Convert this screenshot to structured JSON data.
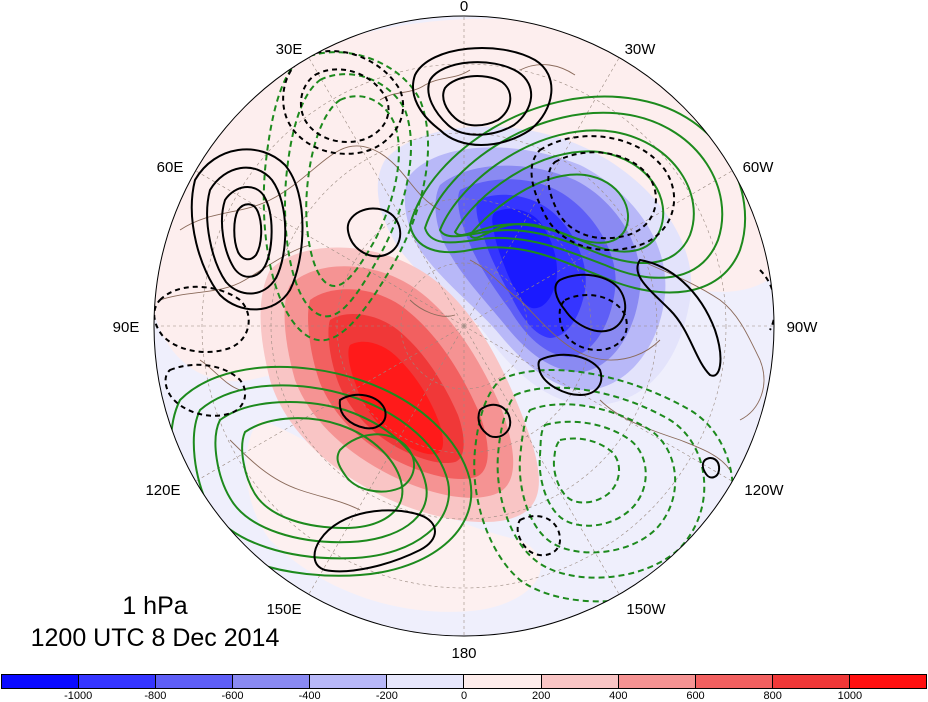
{
  "map": {
    "projection": "north-polar-stereographic",
    "longitude_labels": [
      "0",
      "30W",
      "60W",
      "90W",
      "120W",
      "150W",
      "180",
      "150E",
      "120E",
      "90E",
      "60E",
      "30E"
    ]
  },
  "title": {
    "level": "1 hPa",
    "time": "1200 UTC 8 Dec 2014"
  },
  "colorbar": {
    "colors": [
      "#0a0aff",
      "#3535ff",
      "#5e5ef6",
      "#8a8af2",
      "#b8b8f8",
      "#e6e6fb",
      "#fdeceb",
      "#f9c5c5",
      "#f59393",
      "#f26060",
      "#f03838",
      "#ff1010"
    ],
    "tick_labels": [
      "-1000",
      "-800",
      "-600",
      "-400",
      "-200",
      "0",
      "200",
      "400",
      "600",
      "800",
      "1000"
    ]
  }
}
